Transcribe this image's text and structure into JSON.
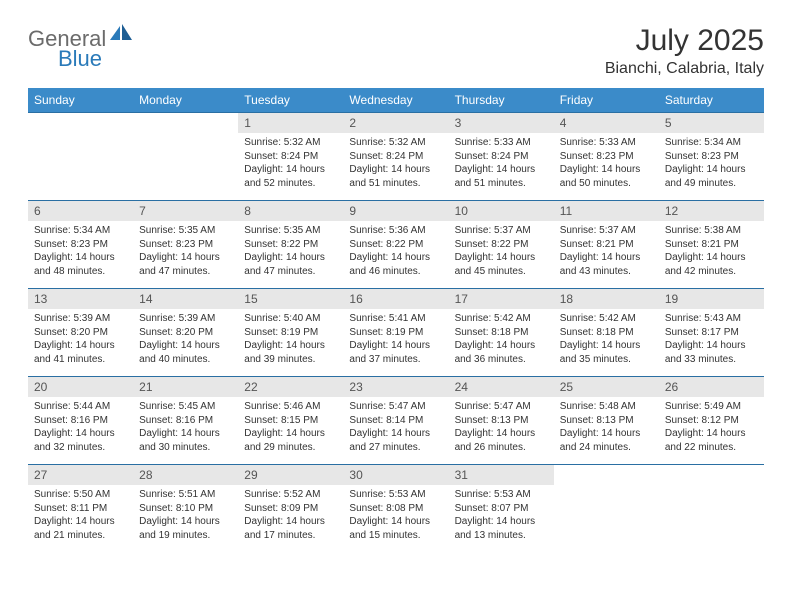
{
  "logo": {
    "text_gray": "General",
    "text_blue": "Blue"
  },
  "title": "July 2025",
  "location": "Bianchi, Calabria, Italy",
  "colors": {
    "header_bg": "#3b8bc9",
    "header_text": "#ffffff",
    "daynum_bg": "#e7e7e7",
    "daynum_text": "#555555",
    "detail_text": "#333333",
    "week_border": "#2a6fa3",
    "logo_gray": "#6b6b6b",
    "logo_blue": "#2a7ab9",
    "page_bg": "#ffffff"
  },
  "day_headers": [
    "Sunday",
    "Monday",
    "Tuesday",
    "Wednesday",
    "Thursday",
    "Friday",
    "Saturday"
  ],
  "weeks": [
    [
      null,
      null,
      {
        "n": "1",
        "sunrise": "5:32 AM",
        "sunset": "8:24 PM",
        "dl": "14 hours and 52 minutes."
      },
      {
        "n": "2",
        "sunrise": "5:32 AM",
        "sunset": "8:24 PM",
        "dl": "14 hours and 51 minutes."
      },
      {
        "n": "3",
        "sunrise": "5:33 AM",
        "sunset": "8:24 PM",
        "dl": "14 hours and 51 minutes."
      },
      {
        "n": "4",
        "sunrise": "5:33 AM",
        "sunset": "8:23 PM",
        "dl": "14 hours and 50 minutes."
      },
      {
        "n": "5",
        "sunrise": "5:34 AM",
        "sunset": "8:23 PM",
        "dl": "14 hours and 49 minutes."
      }
    ],
    [
      {
        "n": "6",
        "sunrise": "5:34 AM",
        "sunset": "8:23 PM",
        "dl": "14 hours and 48 minutes."
      },
      {
        "n": "7",
        "sunrise": "5:35 AM",
        "sunset": "8:23 PM",
        "dl": "14 hours and 47 minutes."
      },
      {
        "n": "8",
        "sunrise": "5:35 AM",
        "sunset": "8:22 PM",
        "dl": "14 hours and 47 minutes."
      },
      {
        "n": "9",
        "sunrise": "5:36 AM",
        "sunset": "8:22 PM",
        "dl": "14 hours and 46 minutes."
      },
      {
        "n": "10",
        "sunrise": "5:37 AM",
        "sunset": "8:22 PM",
        "dl": "14 hours and 45 minutes."
      },
      {
        "n": "11",
        "sunrise": "5:37 AM",
        "sunset": "8:21 PM",
        "dl": "14 hours and 43 minutes."
      },
      {
        "n": "12",
        "sunrise": "5:38 AM",
        "sunset": "8:21 PM",
        "dl": "14 hours and 42 minutes."
      }
    ],
    [
      {
        "n": "13",
        "sunrise": "5:39 AM",
        "sunset": "8:20 PM",
        "dl": "14 hours and 41 minutes."
      },
      {
        "n": "14",
        "sunrise": "5:39 AM",
        "sunset": "8:20 PM",
        "dl": "14 hours and 40 minutes."
      },
      {
        "n": "15",
        "sunrise": "5:40 AM",
        "sunset": "8:19 PM",
        "dl": "14 hours and 39 minutes."
      },
      {
        "n": "16",
        "sunrise": "5:41 AM",
        "sunset": "8:19 PM",
        "dl": "14 hours and 37 minutes."
      },
      {
        "n": "17",
        "sunrise": "5:42 AM",
        "sunset": "8:18 PM",
        "dl": "14 hours and 36 minutes."
      },
      {
        "n": "18",
        "sunrise": "5:42 AM",
        "sunset": "8:18 PM",
        "dl": "14 hours and 35 minutes."
      },
      {
        "n": "19",
        "sunrise": "5:43 AM",
        "sunset": "8:17 PM",
        "dl": "14 hours and 33 minutes."
      }
    ],
    [
      {
        "n": "20",
        "sunrise": "5:44 AM",
        "sunset": "8:16 PM",
        "dl": "14 hours and 32 minutes."
      },
      {
        "n": "21",
        "sunrise": "5:45 AM",
        "sunset": "8:16 PM",
        "dl": "14 hours and 30 minutes."
      },
      {
        "n": "22",
        "sunrise": "5:46 AM",
        "sunset": "8:15 PM",
        "dl": "14 hours and 29 minutes."
      },
      {
        "n": "23",
        "sunrise": "5:47 AM",
        "sunset": "8:14 PM",
        "dl": "14 hours and 27 minutes."
      },
      {
        "n": "24",
        "sunrise": "5:47 AM",
        "sunset": "8:13 PM",
        "dl": "14 hours and 26 minutes."
      },
      {
        "n": "25",
        "sunrise": "5:48 AM",
        "sunset": "8:13 PM",
        "dl": "14 hours and 24 minutes."
      },
      {
        "n": "26",
        "sunrise": "5:49 AM",
        "sunset": "8:12 PM",
        "dl": "14 hours and 22 minutes."
      }
    ],
    [
      {
        "n": "27",
        "sunrise": "5:50 AM",
        "sunset": "8:11 PM",
        "dl": "14 hours and 21 minutes."
      },
      {
        "n": "28",
        "sunrise": "5:51 AM",
        "sunset": "8:10 PM",
        "dl": "14 hours and 19 minutes."
      },
      {
        "n": "29",
        "sunrise": "5:52 AM",
        "sunset": "8:09 PM",
        "dl": "14 hours and 17 minutes."
      },
      {
        "n": "30",
        "sunrise": "5:53 AM",
        "sunset": "8:08 PM",
        "dl": "14 hours and 15 minutes."
      },
      {
        "n": "31",
        "sunrise": "5:53 AM",
        "sunset": "8:07 PM",
        "dl": "14 hours and 13 minutes."
      },
      null,
      null
    ]
  ],
  "labels": {
    "sunrise_prefix": "Sunrise: ",
    "sunset_prefix": "Sunset: ",
    "daylight_prefix": "Daylight: "
  }
}
